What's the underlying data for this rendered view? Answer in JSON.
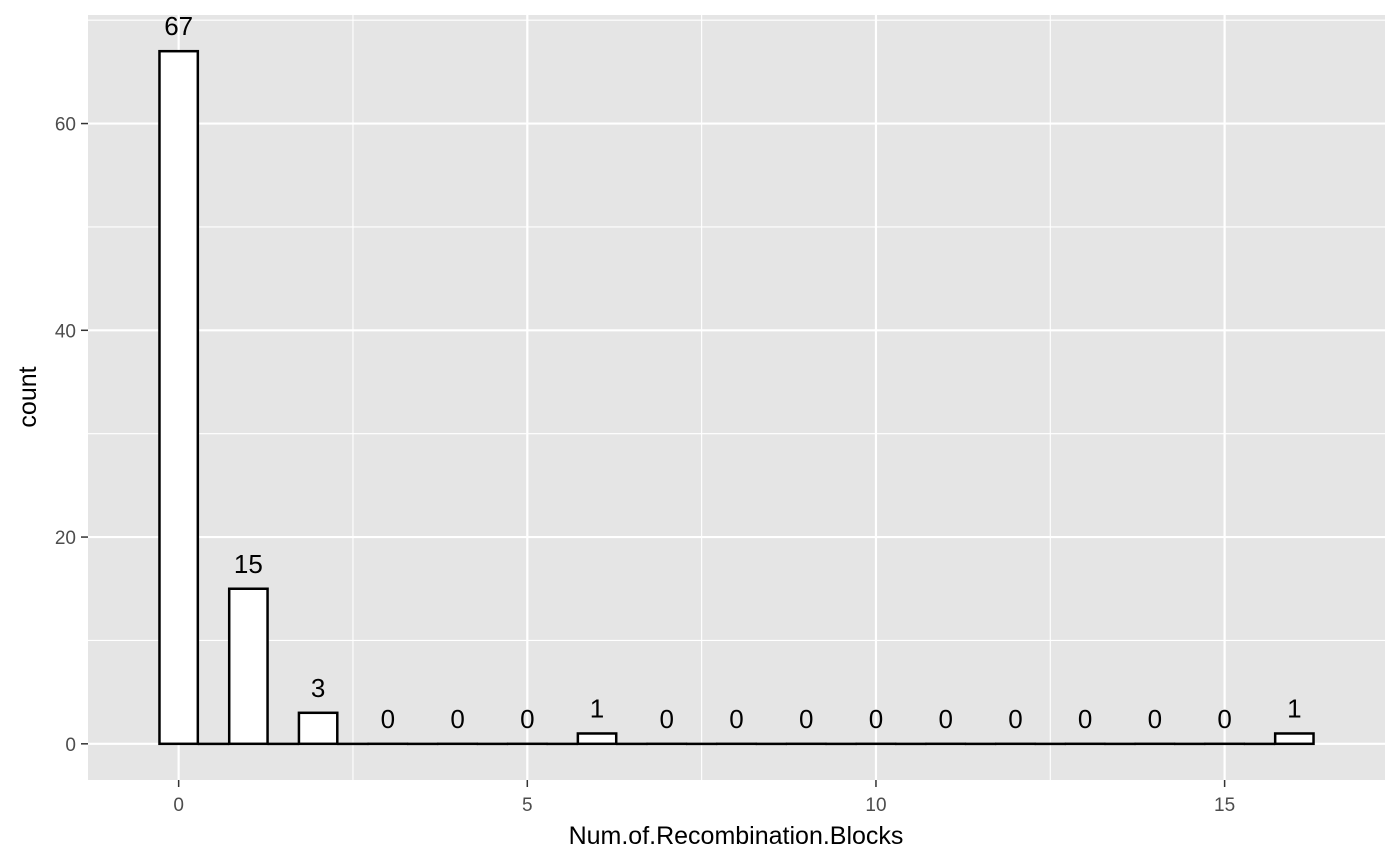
{
  "chart_data": {
    "type": "bar",
    "subtype": "histogram",
    "title": "",
    "xlabel": "Num.of.Recombination.Blocks",
    "ylabel": "count",
    "x": [
      0,
      1,
      2,
      3,
      4,
      5,
      6,
      7,
      8,
      9,
      10,
      11,
      12,
      13,
      14,
      15,
      16
    ],
    "values": [
      67,
      15,
      3,
      0,
      0,
      0,
      1,
      0,
      0,
      0,
      0,
      0,
      0,
      0,
      0,
      0,
      1
    ],
    "data_labels": [
      "67",
      "15",
      "3",
      "0",
      "0",
      "0",
      "1",
      "0",
      "0",
      "0",
      "0",
      "0",
      "0",
      "0",
      "0",
      "0",
      "1"
    ],
    "xlim": [
      -1.3,
      17.3
    ],
    "ylim": [
      -3.5,
      70.5
    ],
    "x_ticks": [
      0,
      5,
      10,
      15
    ],
    "x_tick_labels": [
      "0",
      "5",
      "10",
      "15"
    ],
    "y_ticks": [
      0,
      20,
      40,
      60
    ],
    "y_tick_labels": [
      "0",
      "20",
      "40",
      "60"
    ],
    "bin_width": 1,
    "bar_fill": "#ffffff",
    "bar_outline": "#000000",
    "panel_background": "#e5e5e5",
    "grid_color": "#ffffff",
    "grid": true,
    "legend": "none"
  }
}
